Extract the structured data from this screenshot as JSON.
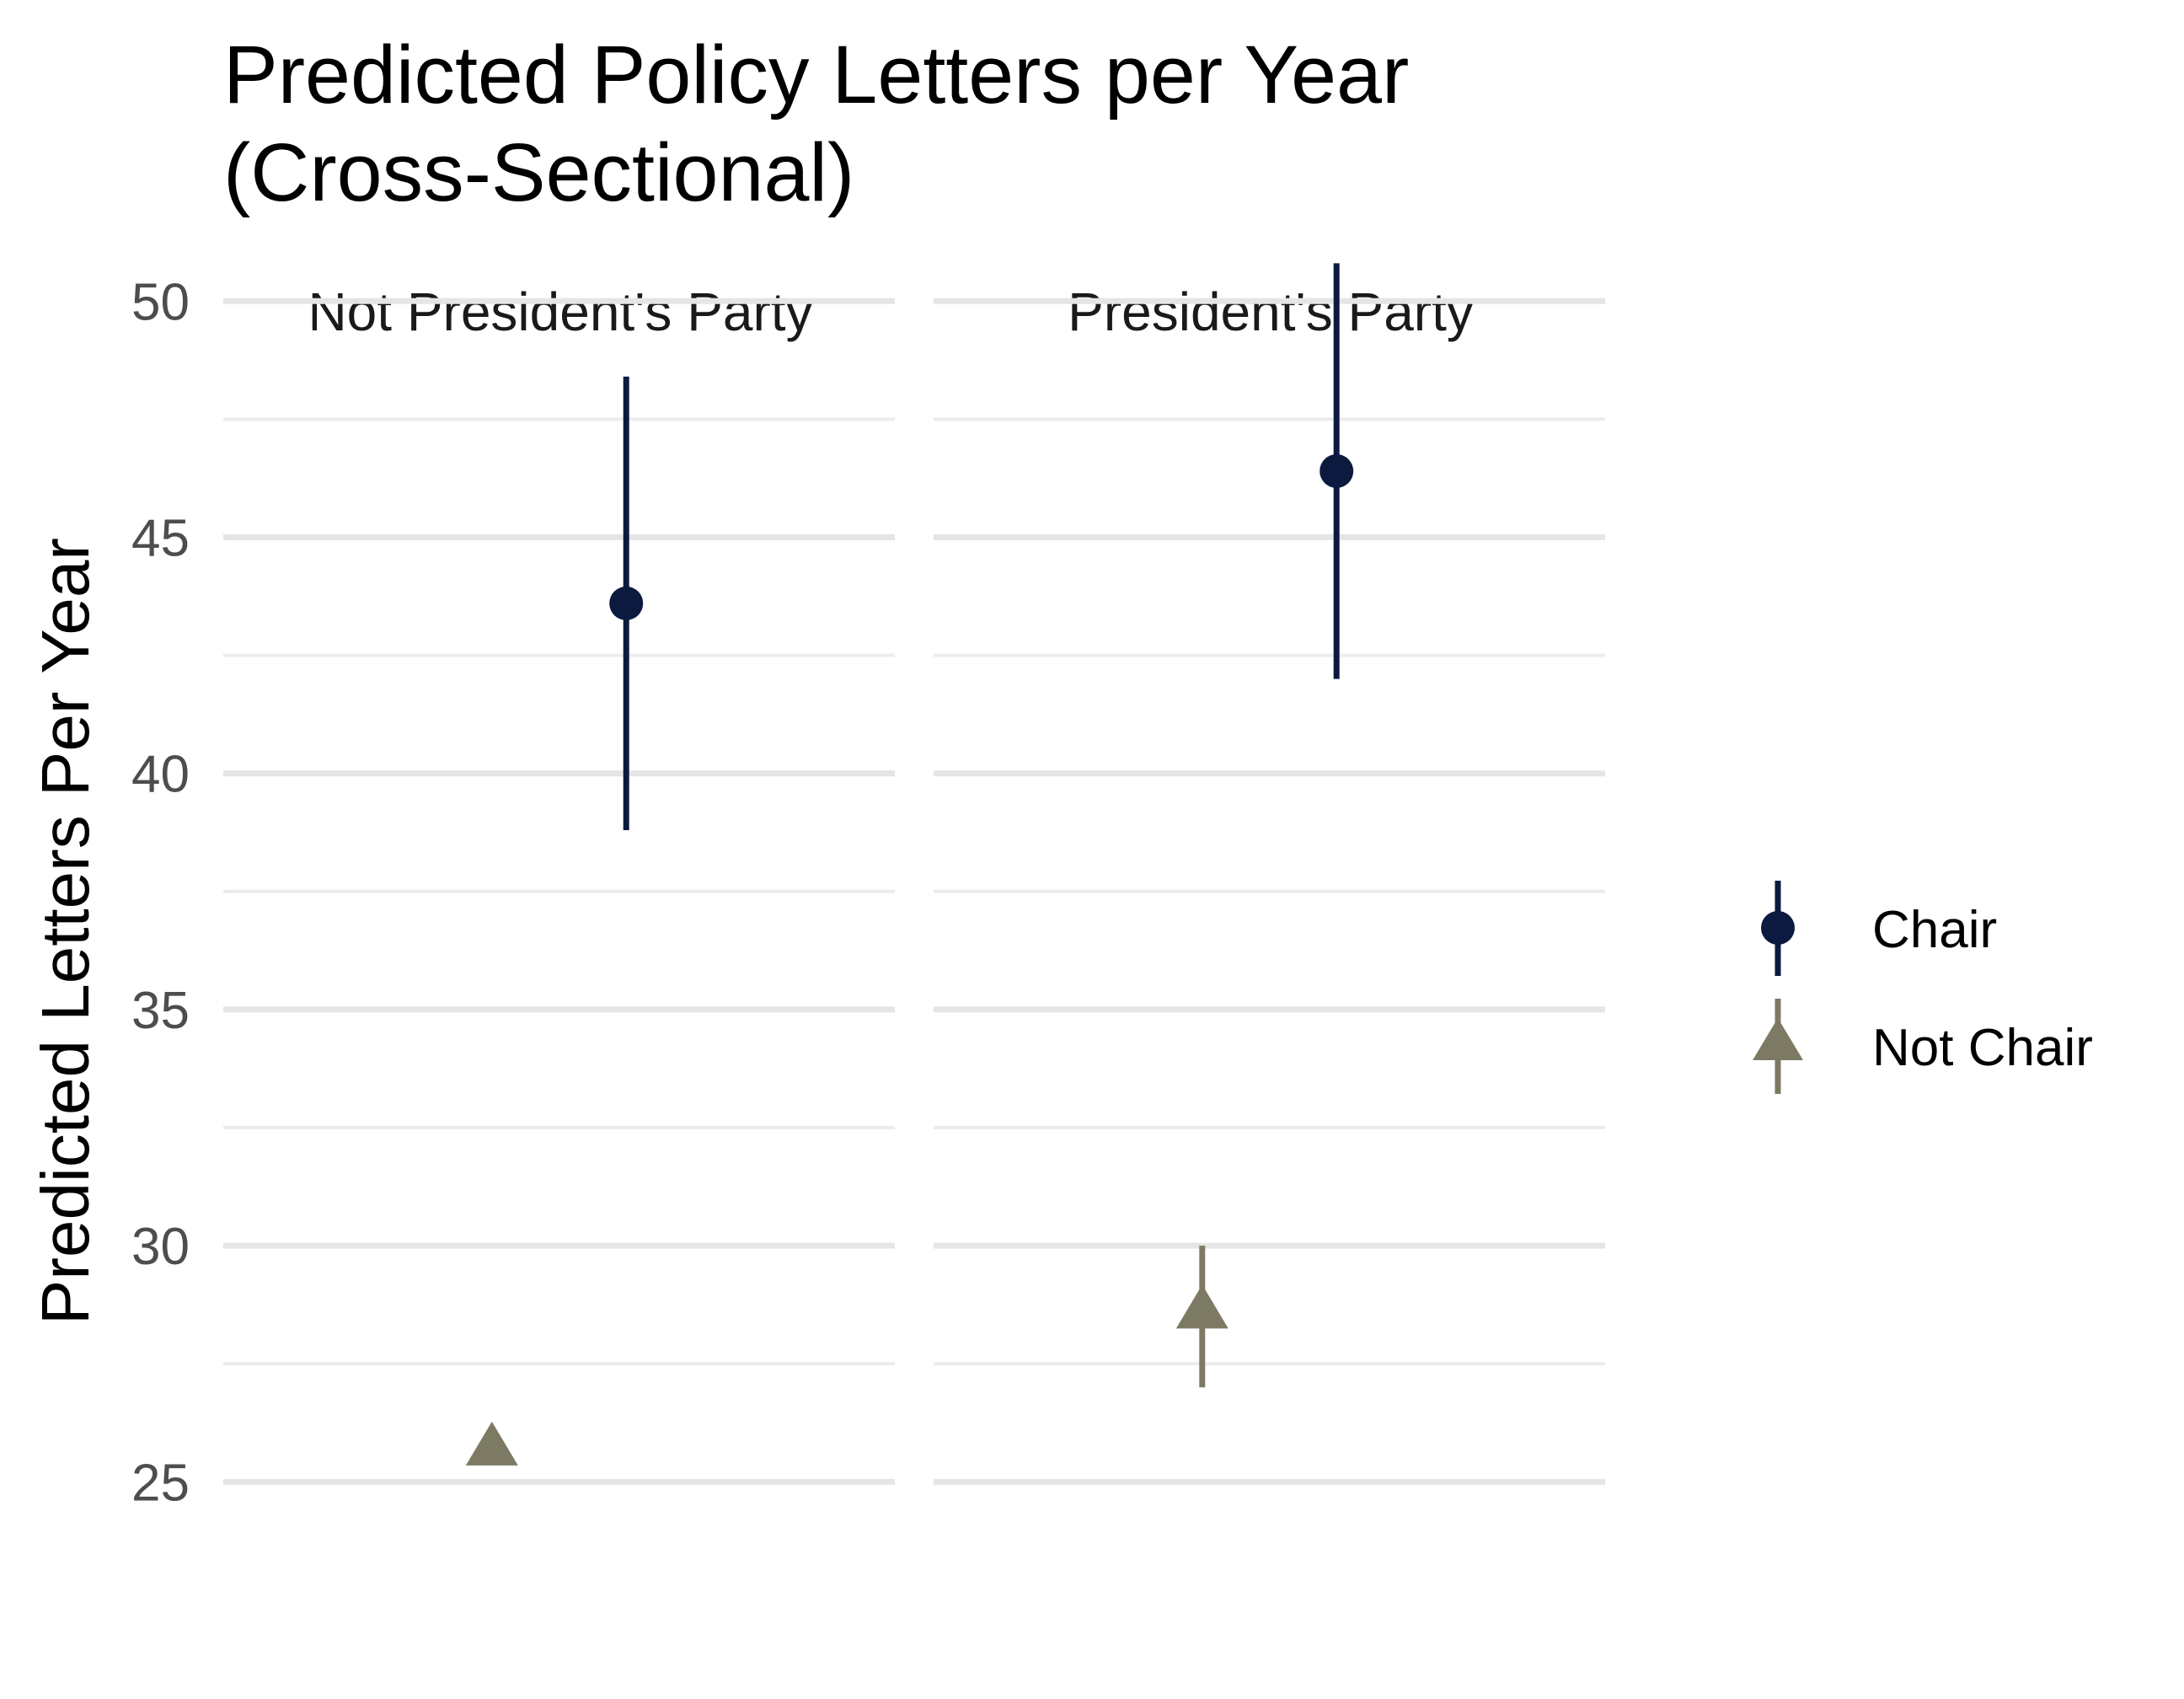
{
  "chart_data": {
    "type": "scatter",
    "title": "Predicted Policy Letters per Year\n(Cross-Sectional)",
    "title_lines": [
      "Predicted Policy Letters per Year",
      "(Cross-Sectional)"
    ],
    "xlabel": "",
    "ylabel": "Predicted Letters Per Year",
    "ylim": [
      23.9,
      51.2
    ],
    "yticks": [
      25,
      30,
      35,
      40,
      45,
      50
    ],
    "grid": true,
    "legend_position": "right",
    "facets": [
      "Not President's Party",
      "President's Party"
    ],
    "series": [
      {
        "name": "Chair",
        "marker": "circle",
        "color": "#0b1a3e",
        "points": [
          {
            "facet": "Not President's Party",
            "y": 43.6,
            "ymin": 38.8,
            "ymax": 48.4
          },
          {
            "facet": "President's Party",
            "y": 46.4,
            "ymin": 42.0,
            "ymax": 50.8
          }
        ]
      },
      {
        "name": "Not Chair",
        "marker": "triangle",
        "color": "#7d7a63",
        "points": [
          {
            "facet": "Not President's Party",
            "y": 25.7,
            "ymin": 25.5,
            "ymax": 25.9
          },
          {
            "facet": "President's Party",
            "y": 28.6,
            "ymin": 27.0,
            "ymax": 30.0
          }
        ]
      }
    ]
  }
}
